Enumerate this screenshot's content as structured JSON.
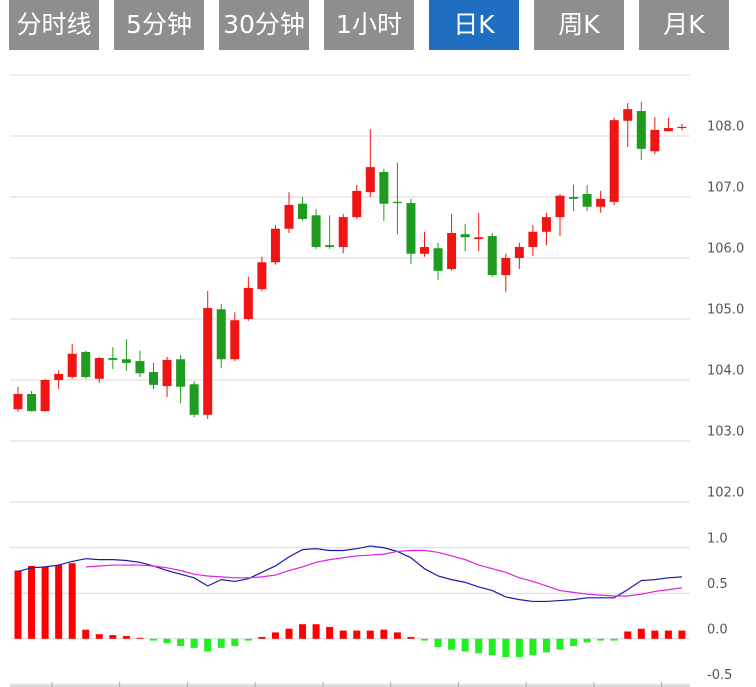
{
  "tabs": [
    {
      "label": "分时线",
      "active": false
    },
    {
      "label": "5分钟",
      "active": false
    },
    {
      "label": "30分钟",
      "active": false
    },
    {
      "label": "1小时",
      "active": false
    },
    {
      "label": "日K",
      "active": true
    },
    {
      "label": "周K",
      "active": false
    },
    {
      "label": "月K",
      "active": false
    }
  ],
  "chart_data": [
    {
      "type": "candlestick",
      "open": [
        103.52,
        103.77,
        103.49,
        104.0,
        104.05,
        104.46,
        104.02,
        104.36,
        104.34,
        104.31,
        104.13,
        103.9,
        104.34,
        103.93,
        103.43,
        105.16,
        104.34,
        105.0,
        105.49,
        105.93,
        106.48,
        106.89,
        106.7,
        106.21,
        106.18,
        106.67,
        107.08,
        107.41,
        106.92,
        106.9,
        106.07,
        106.16,
        105.82,
        106.39,
        106.31,
        106.36,
        105.72,
        106.0,
        106.18,
        106.43,
        106.67,
        107.0,
        107.05,
        106.84,
        106.92,
        108.25,
        108.41,
        107.75,
        108.08,
        108.13
      ],
      "high": [
        103.89,
        103.82,
        104.02,
        104.16,
        104.59,
        104.48,
        104.38,
        104.54,
        104.67,
        104.48,
        104.28,
        104.38,
        104.41,
        103.98,
        105.46,
        105.25,
        105.11,
        105.69,
        106.02,
        106.54,
        107.08,
        107.0,
        106.8,
        106.7,
        106.72,
        107.2,
        108.11,
        107.46,
        107.56,
        106.97,
        106.43,
        106.25,
        106.72,
        106.56,
        106.74,
        106.41,
        106.07,
        106.25,
        106.54,
        106.74,
        107.05,
        107.2,
        107.2,
        107.1,
        108.3,
        108.54,
        108.56,
        108.31,
        108.3,
        108.2
      ],
      "low": [
        103.48,
        103.48,
        103.48,
        103.85,
        104.02,
        104.02,
        103.95,
        104.18,
        104.15,
        104.05,
        103.85,
        103.72,
        103.62,
        103.39,
        103.36,
        104.2,
        104.31,
        104.97,
        105.46,
        105.89,
        106.41,
        106.61,
        106.15,
        106.15,
        106.08,
        106.64,
        107.0,
        106.61,
        106.39,
        105.9,
        106.02,
        105.64,
        105.79,
        106.11,
        106.11,
        105.69,
        105.44,
        105.82,
        106.03,
        106.21,
        106.36,
        106.77,
        106.77,
        106.74,
        106.87,
        107.82,
        107.61,
        107.7,
        108.07,
        108.1
      ],
      "close": [
        103.77,
        103.49,
        104.0,
        104.1,
        104.43,
        104.05,
        104.36,
        104.33,
        104.28,
        104.11,
        103.92,
        104.33,
        103.89,
        103.43,
        105.18,
        104.34,
        104.98,
        105.51,
        105.93,
        106.48,
        106.87,
        106.64,
        106.18,
        106.18,
        106.67,
        107.1,
        107.49,
        106.89,
        106.9,
        106.07,
        106.18,
        105.79,
        106.41,
        106.34,
        106.34,
        105.72,
        106.0,
        106.18,
        106.43,
        106.67,
        107.02,
        106.97,
        106.84,
        106.97,
        108.26,
        108.44,
        107.79,
        108.1,
        108.13,
        108.15
      ],
      "up_color": "#f01414",
      "down_color": "#1f9b1f",
      "ylim": [
        102,
        109
      ],
      "yticks": [
        {
          "value": 102,
          "label": "102.0"
        },
        {
          "value": 103,
          "label": "103.0"
        },
        {
          "value": 104,
          "label": "104.0"
        },
        {
          "value": 105,
          "label": "105.0"
        },
        {
          "value": 106,
          "label": "106.0"
        },
        {
          "value": 107,
          "label": "107.0"
        },
        {
          "value": 108,
          "label": "108.0"
        }
      ],
      "grid": true
    },
    {
      "type": "macd",
      "histogram": [
        0.75,
        0.8,
        0.79,
        0.81,
        0.83,
        0.1,
        0.05,
        0.04,
        0.03,
        0.01,
        -0.02,
        -0.05,
        -0.08,
        -0.1,
        -0.14,
        -0.1,
        -0.08,
        -0.02,
        0.02,
        0.07,
        0.11,
        0.16,
        0.16,
        0.13,
        0.09,
        0.09,
        0.09,
        0.1,
        0.07,
        0.02,
        -0.02,
        -0.09,
        -0.12,
        -0.14,
        -0.16,
        -0.18,
        -0.2,
        -0.2,
        -0.18,
        -0.15,
        -0.12,
        -0.08,
        -0.04,
        -0.02,
        -0.02,
        0.08,
        0.11,
        0.09,
        0.09,
        0.09
      ],
      "positive_color": "#ff0000",
      "negative_color": "#22ee22",
      "series": [
        {
          "color": "#1a1aa6",
          "values": [
            0.74,
            0.78,
            0.79,
            0.81,
            0.85,
            0.88,
            0.87,
            0.87,
            0.86,
            0.84,
            0.8,
            0.75,
            0.71,
            0.67,
            0.58,
            0.65,
            0.63,
            0.66,
            0.73,
            0.8,
            0.9,
            0.98,
            0.99,
            0.97,
            0.97,
            0.99,
            1.02,
            1.0,
            0.96,
            0.89,
            0.77,
            0.69,
            0.65,
            0.62,
            0.57,
            0.53,
            0.46,
            0.43,
            0.41,
            0.41,
            0.42,
            0.43,
            0.45,
            0.45,
            0.45,
            0.54,
            0.64,
            0.65,
            0.67,
            0.68
          ]
        },
        {
          "color": "#e020e0",
          "values": [
            null,
            null,
            null,
            null,
            null,
            0.79,
            0.8,
            0.81,
            0.81,
            0.81,
            0.8,
            0.78,
            0.75,
            0.71,
            0.69,
            0.68,
            0.67,
            0.67,
            0.68,
            0.7,
            0.75,
            0.79,
            0.84,
            0.87,
            0.89,
            0.91,
            0.92,
            0.93,
            0.96,
            0.97,
            0.97,
            0.95,
            0.91,
            0.87,
            0.81,
            0.77,
            0.73,
            0.67,
            0.63,
            0.58,
            0.53,
            0.51,
            0.49,
            0.48,
            0.47,
            0.47,
            0.49,
            0.52,
            0.54,
            0.56
          ]
        }
      ],
      "ylim": [
        -0.53,
        1.47
      ],
      "yticks": [
        {
          "value": -0.5,
          "label": "-0.5"
        },
        {
          "value": 0,
          "label": "0.0"
        },
        {
          "value": 0.5,
          "label": "0.5"
        },
        {
          "value": 1,
          "label": "1.0"
        }
      ],
      "grid": true
    }
  ]
}
